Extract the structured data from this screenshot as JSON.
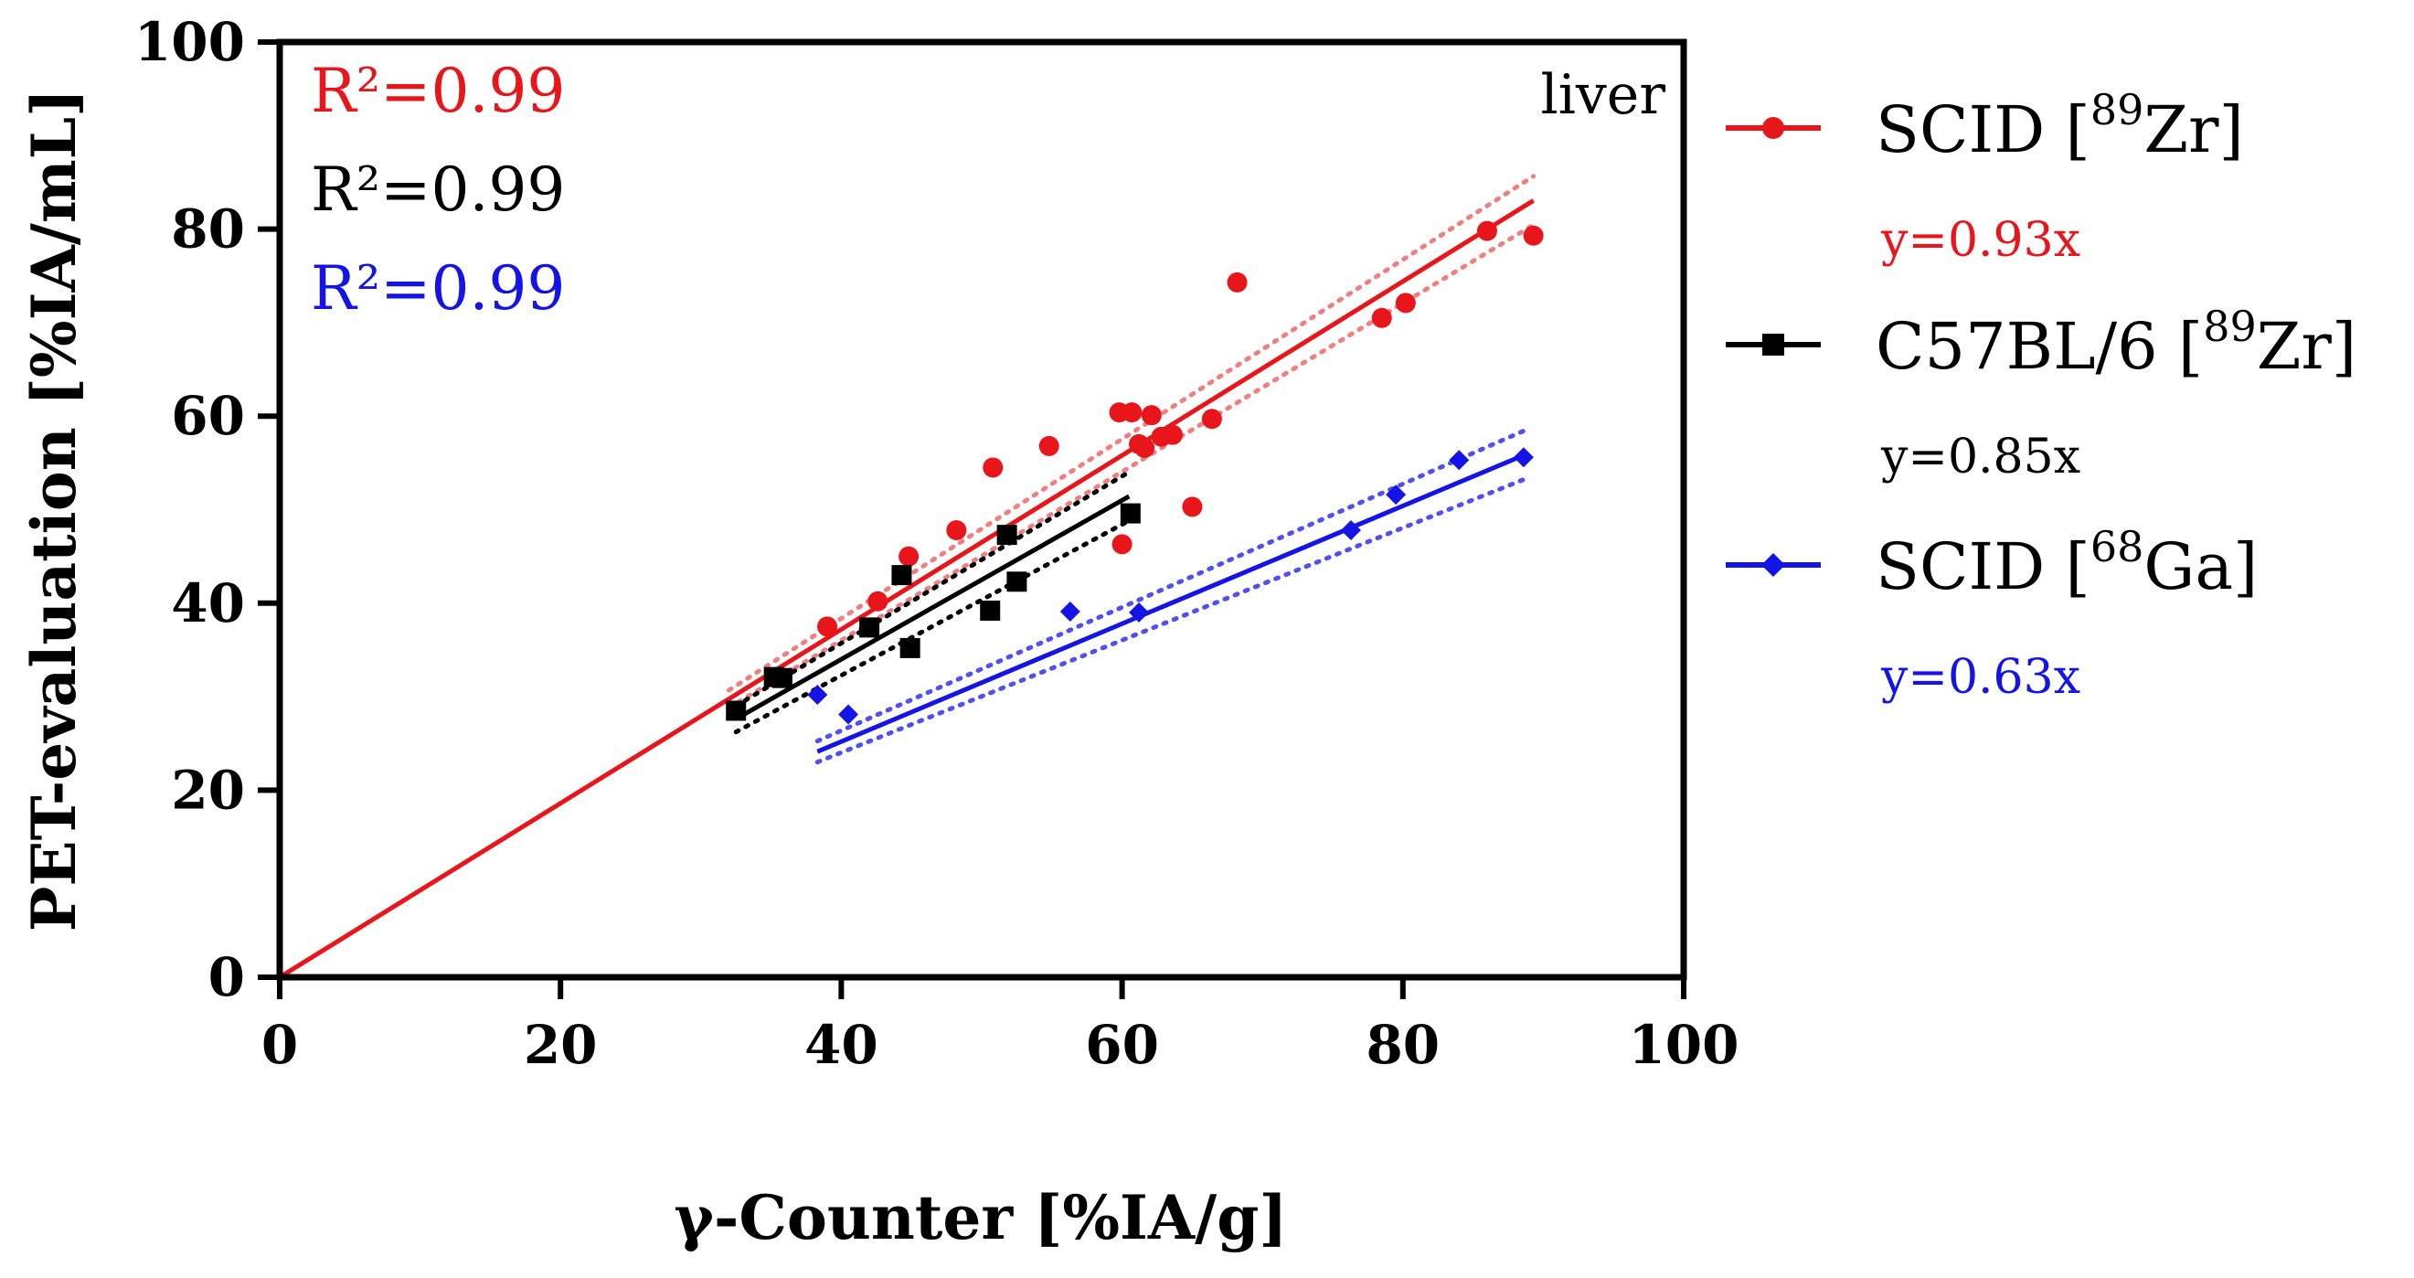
{
  "chart_data": {
    "type": "scatter",
    "title": "",
    "annotation": "liver",
    "xlabel": "γ-Counter [%IA/g]",
    "ylabel": "PET-evaluation [%IA/mL]",
    "xlim": [
      0,
      100
    ],
    "ylim": [
      0,
      100
    ],
    "xticks": [
      "0",
      "20",
      "40",
      "60",
      "80",
      "100"
    ],
    "yticks": [
      "0",
      "20",
      "40",
      "60",
      "80",
      "100"
    ],
    "grid": false,
    "legend_position": "right",
    "series": [
      {
        "name": "SCID [89Zr]",
        "legend_base": "SCID [",
        "legend_sup": "89",
        "legend_tail": "Zr]",
        "color": "#e8161b",
        "band_color": "#f08080",
        "marker": "circle",
        "slope": 0.93,
        "fit_x": [
          0,
          89.3
        ],
        "band_x": [
          32,
          89.3
        ],
        "equation": "y=0.93x",
        "r2_label": "R²=0.99",
        "x": [
          39,
          42.6,
          44.8,
          48.2,
          50.8,
          54.8,
          59.8,
          60.7,
          61.2,
          61.6,
          62.1,
          62.8,
          63.6,
          60.0,
          65.0,
          66.4,
          68.2,
          78.5,
          80.2,
          86.0,
          89.3
        ],
        "y": [
          37.5,
          40.2,
          45.0,
          47.8,
          54.5,
          56.8,
          60.4,
          60.4,
          57.0,
          56.6,
          60.1,
          57.8,
          58.0,
          46.3,
          50.3,
          59.7,
          74.3,
          70.5,
          72.1,
          79.8,
          79.3
        ]
      },
      {
        "name": "C57BL/6 [89Zr]",
        "legend_base": "C57BL/6 [",
        "legend_sup": "89",
        "legend_tail": "Zr]",
        "color": "#000000",
        "band_color": "#000000",
        "marker": "square",
        "slope": 0.85,
        "fit_x": [
          32.5,
          60.5
        ],
        "band_x": [
          32.5,
          60.5
        ],
        "equation": "y=0.85x",
        "r2_label": "R²=0.99",
        "x": [
          32.5,
          35.2,
          35.8,
          42.0,
          44.3,
          44.9,
          50.6,
          51.8,
          52.5,
          60.6
        ],
        "y": [
          28.5,
          32.1,
          32.0,
          37.4,
          43.0,
          35.2,
          39.2,
          47.3,
          42.3,
          49.6
        ]
      },
      {
        "name": "SCID [68Ga]",
        "legend_base": "SCID [",
        "legend_sup": "68",
        "legend_tail": "Ga]",
        "color": "#1414e6",
        "band_color": "#5050f0",
        "marker": "diamond",
        "slope": 0.63,
        "fit_x": [
          38.3,
          88.6
        ],
        "band_x": [
          38.3,
          88.6
        ],
        "equation": "y=0.63x",
        "r2_label": "R²=0.99",
        "x": [
          38.3,
          40.5,
          56.3,
          61.2,
          76.3,
          79.5,
          84.0,
          88.6
        ],
        "y": [
          30.2,
          28.1,
          39.1,
          39.0,
          47.8,
          51.6,
          55.3,
          55.6
        ]
      }
    ]
  }
}
